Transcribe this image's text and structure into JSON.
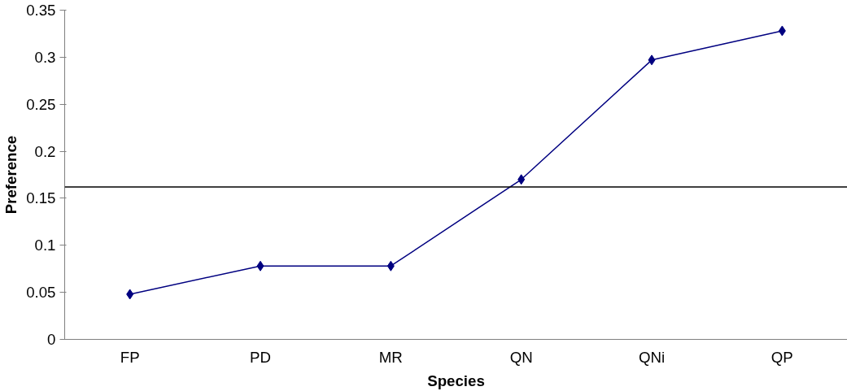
{
  "chart_data": {
    "type": "line",
    "xlabel": "Species",
    "ylabel": "Preference",
    "categories": [
      "FP",
      "PD",
      "MR",
      "QN",
      "QNi",
      "QP"
    ],
    "series": [
      {
        "color": "#000080",
        "values": [
          0.048,
          0.078,
          0.078,
          0.17,
          0.297,
          0.328
        ]
      }
    ],
    "ylim": [
      0,
      0.35
    ],
    "yticks": [
      0,
      0.05,
      0.1,
      0.15,
      0.2,
      0.25,
      0.3,
      0.35
    ],
    "ref_lines": [
      {
        "axis": "y",
        "value": 0.162,
        "color": "#000000"
      }
    ],
    "marker": "diamond",
    "line_style": "solid"
  }
}
